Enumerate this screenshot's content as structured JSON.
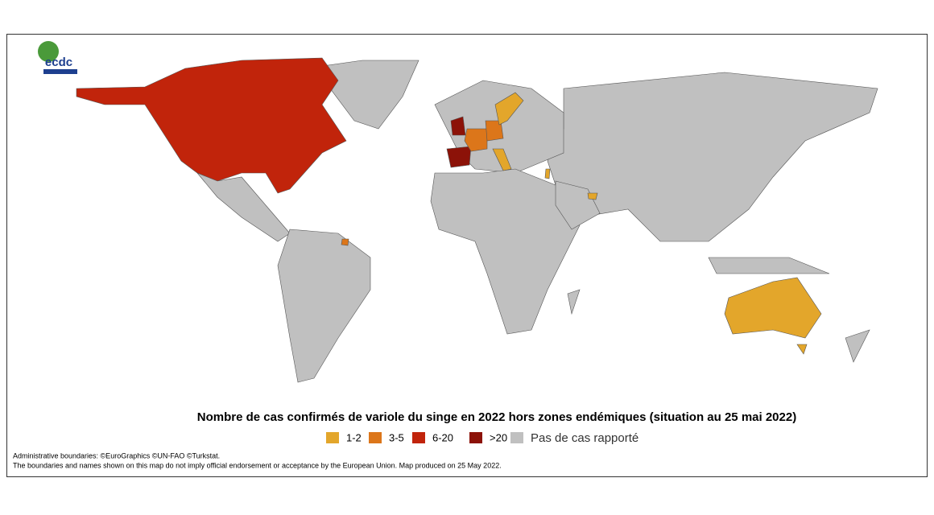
{
  "logo": {
    "text": "ecdc"
  },
  "title": "Nombre de cas confirmés de variole du singe en 2022 hors zones endémiques (situation au 25 mai 2022)",
  "legend": [
    {
      "label": "1-2",
      "color": "#e3a62b"
    },
    {
      "label": "3-5",
      "color": "#dc761a"
    },
    {
      "label": "6-20",
      "color": "#c1240b"
    },
    {
      "label": ">20",
      "color": "#8c1208"
    },
    {
      "label": "Pas de cas rapporté",
      "color": "#c0c0c0"
    }
  ],
  "credits": [
    "Administrative boundaries: ©EuroGraphics ©UN-FAO ©Turkstat.",
    "The boundaries and names shown on this map do not imply official endorsement or acceptance by the European Union. Map produced on 25 May 2022."
  ]
}
